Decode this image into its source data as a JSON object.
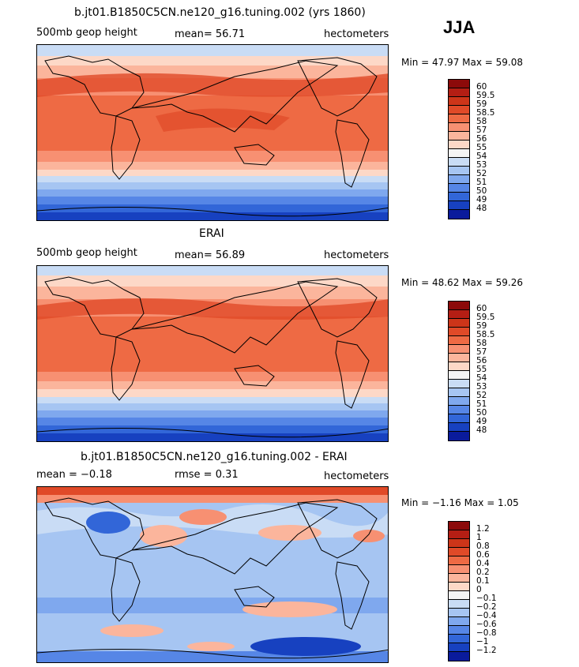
{
  "season": "JJA",
  "panels": [
    {
      "title": "b.jt01.B1850C5CN.ne120_g16.tuning.002 (yrs 1860)",
      "left_label": "500mb geop height",
      "center_label": "mean=  56.71",
      "units": "hectometers",
      "minmax": "Min =  47.97 Max =  59.08",
      "levels": [
        "60",
        "59.5",
        "59",
        "58.5",
        "58",
        "57",
        "56",
        "55",
        "54",
        "53",
        "52",
        "51",
        "50",
        "49",
        "48"
      ]
    },
    {
      "title": "ERAI",
      "left_label": "500mb geop height",
      "center_label": "mean=  56.89",
      "units": "hectometers",
      "minmax": "Min =  48.62 Max =  59.26",
      "levels": [
        "60",
        "59.5",
        "59",
        "58.5",
        "58",
        "57",
        "56",
        "55",
        "54",
        "53",
        "52",
        "51",
        "50",
        "49",
        "48"
      ]
    },
    {
      "title": "b.jt01.B1850C5CN.ne120_g16.tuning.002 - ERAI",
      "left_label": "mean =  −0.18",
      "center_label": "rmse =   0.31",
      "units": "hectometers",
      "minmax": "Min =  −1.16 Max =   1.05",
      "levels": [
        "1.2",
        "1",
        "0.8",
        "0.6",
        "0.4",
        "0.2",
        "0.1",
        "0",
        "−0.1",
        "−0.2",
        "−0.4",
        "−0.6",
        "−0.8",
        "−1",
        "−1.2"
      ]
    }
  ],
  "colors": {
    "scale": [
      "#8c0a0a",
      "#b41e14",
      "#cd3519",
      "#e04a28",
      "#ee6a44",
      "#f79072",
      "#fbb59c",
      "#fdd8c7",
      "#f4f4f4",
      "#c9dcf5",
      "#a6c5f2",
      "#7fa8ee",
      "#5686e6",
      "#3266d8",
      "#1741c0",
      "#0a1b9c"
    ]
  }
}
